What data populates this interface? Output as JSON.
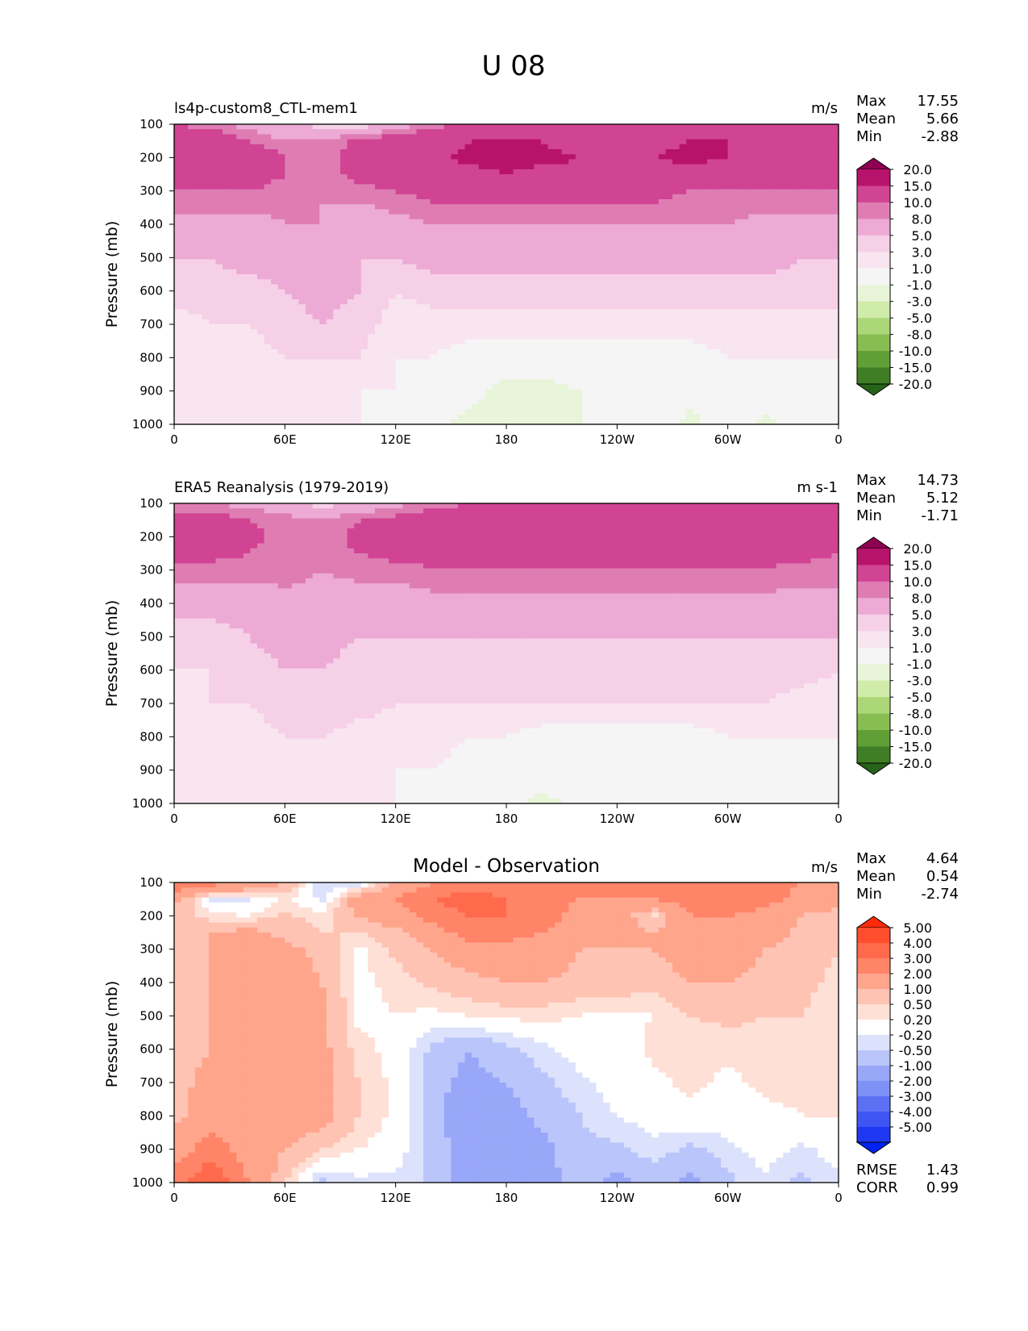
{
  "figure_title": "U 08",
  "colorscales": {
    "wind": [
      "#8e0152",
      "#b8136c",
      "#d04493",
      "#df7db3",
      "#ecaad4",
      "#f6d0e7",
      "#f9e5f0",
      "#f5f5f5",
      "#e9f5d9",
      "#d0eca9",
      "#acd779",
      "#87bd51",
      "#609e36",
      "#3f7e25",
      "#276419"
    ],
    "diff": [
      "#ff2a0a",
      "#ff4e2e",
      "#ff6a4d",
      "#ff8468",
      "#ffa58c",
      "#ffc3b3",
      "#ffe0d6",
      "#ffffff",
      "#dde2fc",
      "#bac6fb",
      "#99a7f9",
      "#7e91f7",
      "#5c70f4",
      "#3f55f3",
      "#1f38f2",
      "#0022f0"
    ]
  },
  "chart_data": [
    {
      "type": "heatmap",
      "panel": "model",
      "title_left": "ls4p-custom8_CTL-mem1",
      "units": "m/s",
      "ylabel": "Pressure (mb)",
      "x_ticks": [
        "0",
        "60E",
        "120E",
        "180",
        "120W",
        "60W",
        "0"
      ],
      "y_ticks": [
        "100",
        "200",
        "300",
        "400",
        "500",
        "600",
        "700",
        "800",
        "900",
        "1000"
      ],
      "ylim": [
        100,
        1000
      ],
      "xlim": [
        0,
        360
      ],
      "stats": [
        {
          "label": "Max",
          "value": "17.55"
        },
        {
          "label": "Mean",
          "value": "5.66"
        },
        {
          "label": "Min",
          "value": "-2.88"
        }
      ],
      "colorbar_scale": "wind",
      "colorbar_labels": [
        "20.0",
        "15.0",
        "10.0",
        "8.0",
        "5.0",
        "3.0",
        "1.0",
        "-1.0",
        "-3.0",
        "-5.0",
        "-8.0",
        "-10.0",
        "-15.0",
        "-20.0"
      ],
      "field": {
        "x": [
          0,
          20,
          40,
          60,
          80,
          100,
          120,
          140,
          160,
          180,
          200,
          220,
          240,
          260,
          280,
          300,
          320,
          340,
          360
        ],
        "p": [
          100,
          150,
          200,
          250,
          300,
          400,
          500,
          600,
          700,
          800,
          900,
          1000
        ],
        "values": [
          [
            10,
            9,
            7,
            6,
            4,
            3,
            6,
            9,
            10,
            11,
            11,
            11,
            11,
            10,
            10,
            10,
            10,
            11,
            11
          ],
          [
            12,
            13,
            10,
            8,
            8,
            11,
            12,
            13,
            15,
            16,
            15,
            13,
            13,
            14,
            15,
            15,
            13,
            12,
            12
          ],
          [
            12,
            13,
            13,
            10,
            8,
            12,
            13,
            14,
            16,
            16,
            16,
            15,
            13,
            15,
            16,
            15,
            13,
            12,
            12
          ],
          [
            12,
            12,
            12,
            10,
            9,
            11,
            12,
            13,
            14,
            15,
            14,
            14,
            13,
            13,
            14,
            13,
            12,
            12,
            11
          ],
          [
            10,
            10,
            10,
            9,
            8,
            9,
            10,
            11,
            11,
            11,
            11,
            11,
            11,
            11,
            10,
            10,
            10,
            10,
            10
          ],
          [
            7,
            7,
            7,
            8,
            8,
            6,
            7,
            8,
            8,
            8,
            8,
            8,
            8,
            8,
            8,
            8,
            7,
            7,
            7
          ],
          [
            5,
            5,
            6,
            6,
            6,
            5,
            5,
            6,
            6,
            6,
            6,
            6,
            6,
            6,
            6,
            6,
            6,
            5,
            5
          ],
          [
            4,
            4,
            4,
            5,
            6,
            5,
            3,
            4,
            4,
            4,
            4,
            4,
            4,
            4,
            4,
            4,
            4,
            4,
            4
          ],
          [
            2,
            3,
            3,
            4,
            5,
            4,
            2,
            2,
            2,
            2,
            2,
            2,
            2,
            2,
            2,
            2,
            2,
            2,
            2
          ],
          [
            2,
            2,
            2,
            3,
            3,
            3,
            1,
            1,
            0,
            0,
            0,
            0,
            0,
            0,
            0,
            1,
            1,
            1,
            1
          ],
          [
            2,
            3,
            2,
            2,
            2,
            1,
            1,
            0,
            -0.5,
            -1.5,
            -1.5,
            -1,
            0,
            0,
            -0.5,
            0,
            0,
            0,
            0
          ],
          [
            2,
            3,
            2,
            2,
            1,
            1,
            0,
            -0.5,
            -1.5,
            -2,
            -1.5,
            -1,
            -0.5,
            0,
            -1.5,
            0,
            -1.5,
            0,
            0
          ]
        ]
      }
    },
    {
      "type": "heatmap",
      "panel": "reanalysis",
      "title_left": "ERA5 Reanalysis (1979-2019)",
      "units": "m s-1",
      "ylabel": "Pressure (mb)",
      "x_ticks": [
        "0",
        "60E",
        "120E",
        "180",
        "120W",
        "60W",
        "0"
      ],
      "y_ticks": [
        "100",
        "200",
        "300",
        "400",
        "500",
        "600",
        "700",
        "800",
        "900",
        "1000"
      ],
      "ylim": [
        100,
        1000
      ],
      "xlim": [
        0,
        360
      ],
      "stats": [
        {
          "label": "Max",
          "value": "14.73"
        },
        {
          "label": "Mean",
          "value": "5.12"
        },
        {
          "label": "Min",
          "value": "-1.71"
        }
      ],
      "colorbar_scale": "wind",
      "colorbar_labels": [
        "20.0",
        "15.0",
        "10.0",
        "8.0",
        "5.0",
        "3.0",
        "1.0",
        "-1.0",
        "-3.0",
        "-5.0",
        "-8.0",
        "-10.0",
        "-15.0",
        "-20.0"
      ],
      "field": {
        "x": [
          0,
          20,
          40,
          60,
          80,
          100,
          120,
          140,
          160,
          180,
          200,
          220,
          240,
          260,
          280,
          300,
          320,
          340,
          360
        ],
        "p": [
          100,
          150,
          200,
          250,
          300,
          400,
          500,
          600,
          700,
          800,
          900,
          1000
        ],
        "values": [
          [
            9,
            8,
            7,
            6,
            4,
            5,
            7,
            9,
            10,
            10,
            10,
            10,
            10,
            10,
            10,
            10,
            10,
            10,
            10
          ],
          [
            11,
            12,
            10,
            9,
            8,
            10,
            11,
            12,
            12,
            13,
            13,
            13,
            13,
            13,
            13,
            13,
            12,
            12,
            11
          ],
          [
            11,
            12,
            11,
            9,
            8,
            11,
            12,
            12,
            13,
            13,
            13,
            13,
            13,
            12,
            12,
            12,
            12,
            12,
            11
          ],
          [
            11,
            11,
            10,
            9,
            9,
            10,
            11,
            11,
            12,
            12,
            12,
            11,
            11,
            11,
            11,
            11,
            11,
            11,
            10
          ],
          [
            9,
            9,
            9,
            9,
            8,
            9,
            9,
            10,
            10,
            10,
            10,
            10,
            10,
            10,
            10,
            10,
            10,
            9,
            9
          ],
          [
            6,
            6,
            6,
            7,
            7,
            6,
            6,
            7,
            7,
            7,
            7,
            7,
            7,
            7,
            7,
            7,
            7,
            7,
            7
          ],
          [
            4,
            4,
            5,
            6,
            6,
            5,
            5,
            5,
            5,
            5,
            5,
            5,
            5,
            5,
            5,
            5,
            5,
            5,
            5
          ],
          [
            3,
            3,
            4,
            5,
            5,
            4,
            3,
            4,
            4,
            4,
            4,
            4,
            4,
            4,
            4,
            4,
            4,
            4,
            3
          ],
          [
            2,
            3,
            3,
            4,
            5,
            4,
            3,
            3,
            3,
            3,
            3,
            3,
            3,
            3,
            3,
            3,
            3,
            2,
            2
          ],
          [
            2,
            2,
            2,
            3,
            3,
            2,
            2,
            2,
            1,
            1,
            0,
            0,
            0,
            0,
            0,
            1,
            1,
            1,
            1
          ],
          [
            2,
            2,
            2,
            2,
            2,
            2,
            1,
            1,
            0,
            0,
            0,
            0,
            0,
            0,
            0,
            0,
            0,
            0,
            0
          ],
          [
            2,
            2,
            2,
            2,
            2,
            1,
            1,
            0,
            0,
            -0.5,
            -1.5,
            -0.5,
            0,
            0,
            0,
            0,
            0,
            0,
            0
          ]
        ]
      }
    },
    {
      "type": "heatmap",
      "panel": "difference",
      "title_center": "Model - Observation",
      "units": "m/s",
      "ylabel": "Pressure (mb)",
      "x_ticks": [
        "0",
        "60E",
        "120E",
        "180",
        "120W",
        "60W",
        "0"
      ],
      "y_ticks": [
        "100",
        "200",
        "300",
        "400",
        "500",
        "600",
        "700",
        "800",
        "900",
        "1000"
      ],
      "ylim": [
        100,
        1000
      ],
      "xlim": [
        0,
        360
      ],
      "stats": [
        {
          "label": "Max",
          "value": "4.64"
        },
        {
          "label": "Mean",
          "value": "0.54"
        },
        {
          "label": "Min",
          "value": "-2.74"
        }
      ],
      "extra_stats": [
        {
          "label": "RMSE",
          "value": "1.43"
        },
        {
          "label": "CORR",
          "value": "0.99"
        }
      ],
      "colorbar_scale": "diff",
      "colorbar_labels": [
        "5.00",
        "4.00",
        "3.00",
        "2.00",
        "1.00",
        "0.50",
        "0.20",
        "-0.20",
        "-0.50",
        "-1.00",
        "-2.00",
        "-3.00",
        "-4.00",
        "-5.00"
      ],
      "field": {
        "x": [
          0,
          20,
          40,
          60,
          80,
          100,
          120,
          140,
          160,
          180,
          200,
          220,
          240,
          260,
          280,
          300,
          320,
          340,
          360
        ],
        "p": [
          100,
          150,
          200,
          250,
          300,
          400,
          500,
          600,
          700,
          800,
          900,
          1000
        ],
        "values": [
          [
            3,
            2.5,
            2,
            1,
            -0.5,
            -0.5,
            1,
            2,
            2.5,
            2.5,
            2.5,
            2,
            2,
            2,
            2.5,
            3,
            3,
            2,
            1.5
          ],
          [
            1.2,
            -0.3,
            -0.3,
            0.3,
            -0.3,
            1.5,
            2,
            3,
            3.5,
            3,
            2.5,
            2,
            2,
            2,
            2.5,
            3,
            2.5,
            1.5,
            1.2
          ],
          [
            0.8,
            0.3,
            0.2,
            0.6,
            0.3,
            1,
            1.5,
            2.5,
            3,
            3,
            2.5,
            1.5,
            1.5,
            0.3,
            2,
            2,
            1.5,
            1,
            0.8
          ],
          [
            0.6,
            1,
            1.2,
            0.8,
            0.5,
            0.5,
            0.8,
            1.5,
            2.5,
            2.5,
            2,
            1.5,
            1.5,
            1,
            1.5,
            2,
            1.5,
            0.8,
            0.6
          ],
          [
            0.7,
            1,
            1.5,
            1.2,
            0.8,
            0.1,
            0.6,
            1,
            1.5,
            1.5,
            1.5,
            1,
            1,
            1,
            1.5,
            1.5,
            1,
            0.7,
            0.5
          ],
          [
            0.8,
            1,
            1.5,
            1.5,
            1,
            0.1,
            0.3,
            0.6,
            0.8,
            1,
            1,
            0.8,
            0.8,
            0.6,
            1,
            1,
            0.8,
            0.6,
            0.4
          ],
          [
            0.8,
            1,
            1.5,
            1.5,
            1.2,
            0.1,
            0.2,
            0.1,
            0.2,
            0.3,
            0.3,
            0.2,
            0.1,
            0.2,
            0.5,
            0.6,
            0.5,
            0.5,
            0.3
          ],
          [
            0.8,
            1,
            1.5,
            1.5,
            1.2,
            0.3,
            0.1,
            -0.6,
            -1,
            -0.6,
            -0.3,
            0,
            0,
            0.3,
            0.3,
            0.3,
            0.4,
            0.4,
            0.3
          ],
          [
            0.8,
            1.2,
            1.5,
            1.5,
            1.2,
            0.5,
            0.1,
            -0.8,
            -1.2,
            -1,
            -0.6,
            -0.3,
            0,
            0.1,
            0.3,
            0.1,
            0.3,
            0.3,
            0.3
          ],
          [
            0.8,
            1.5,
            1.5,
            1.5,
            1.3,
            0.5,
            0.1,
            -0.8,
            -1.5,
            -1.3,
            -0.8,
            -0.5,
            -0.2,
            0,
            0.1,
            0,
            0.1,
            0.2,
            0.2
          ],
          [
            1.5,
            2.5,
            1.5,
            1,
            0.5,
            0.2,
            0,
            -0.6,
            -1.5,
            -1.5,
            -1.2,
            -0.6,
            -0.6,
            -0.3,
            -0.6,
            -0.3,
            0,
            -0.3,
            0
          ],
          [
            2.5,
            4,
            2,
            0.5,
            -0.6,
            -0.3,
            -0.3,
            -0.6,
            -1.5,
            -1.5,
            -1.2,
            -0.8,
            -1.2,
            -0.8,
            -1.2,
            -0.6,
            -0.3,
            -0.6,
            -0.3
          ]
        ]
      }
    }
  ]
}
